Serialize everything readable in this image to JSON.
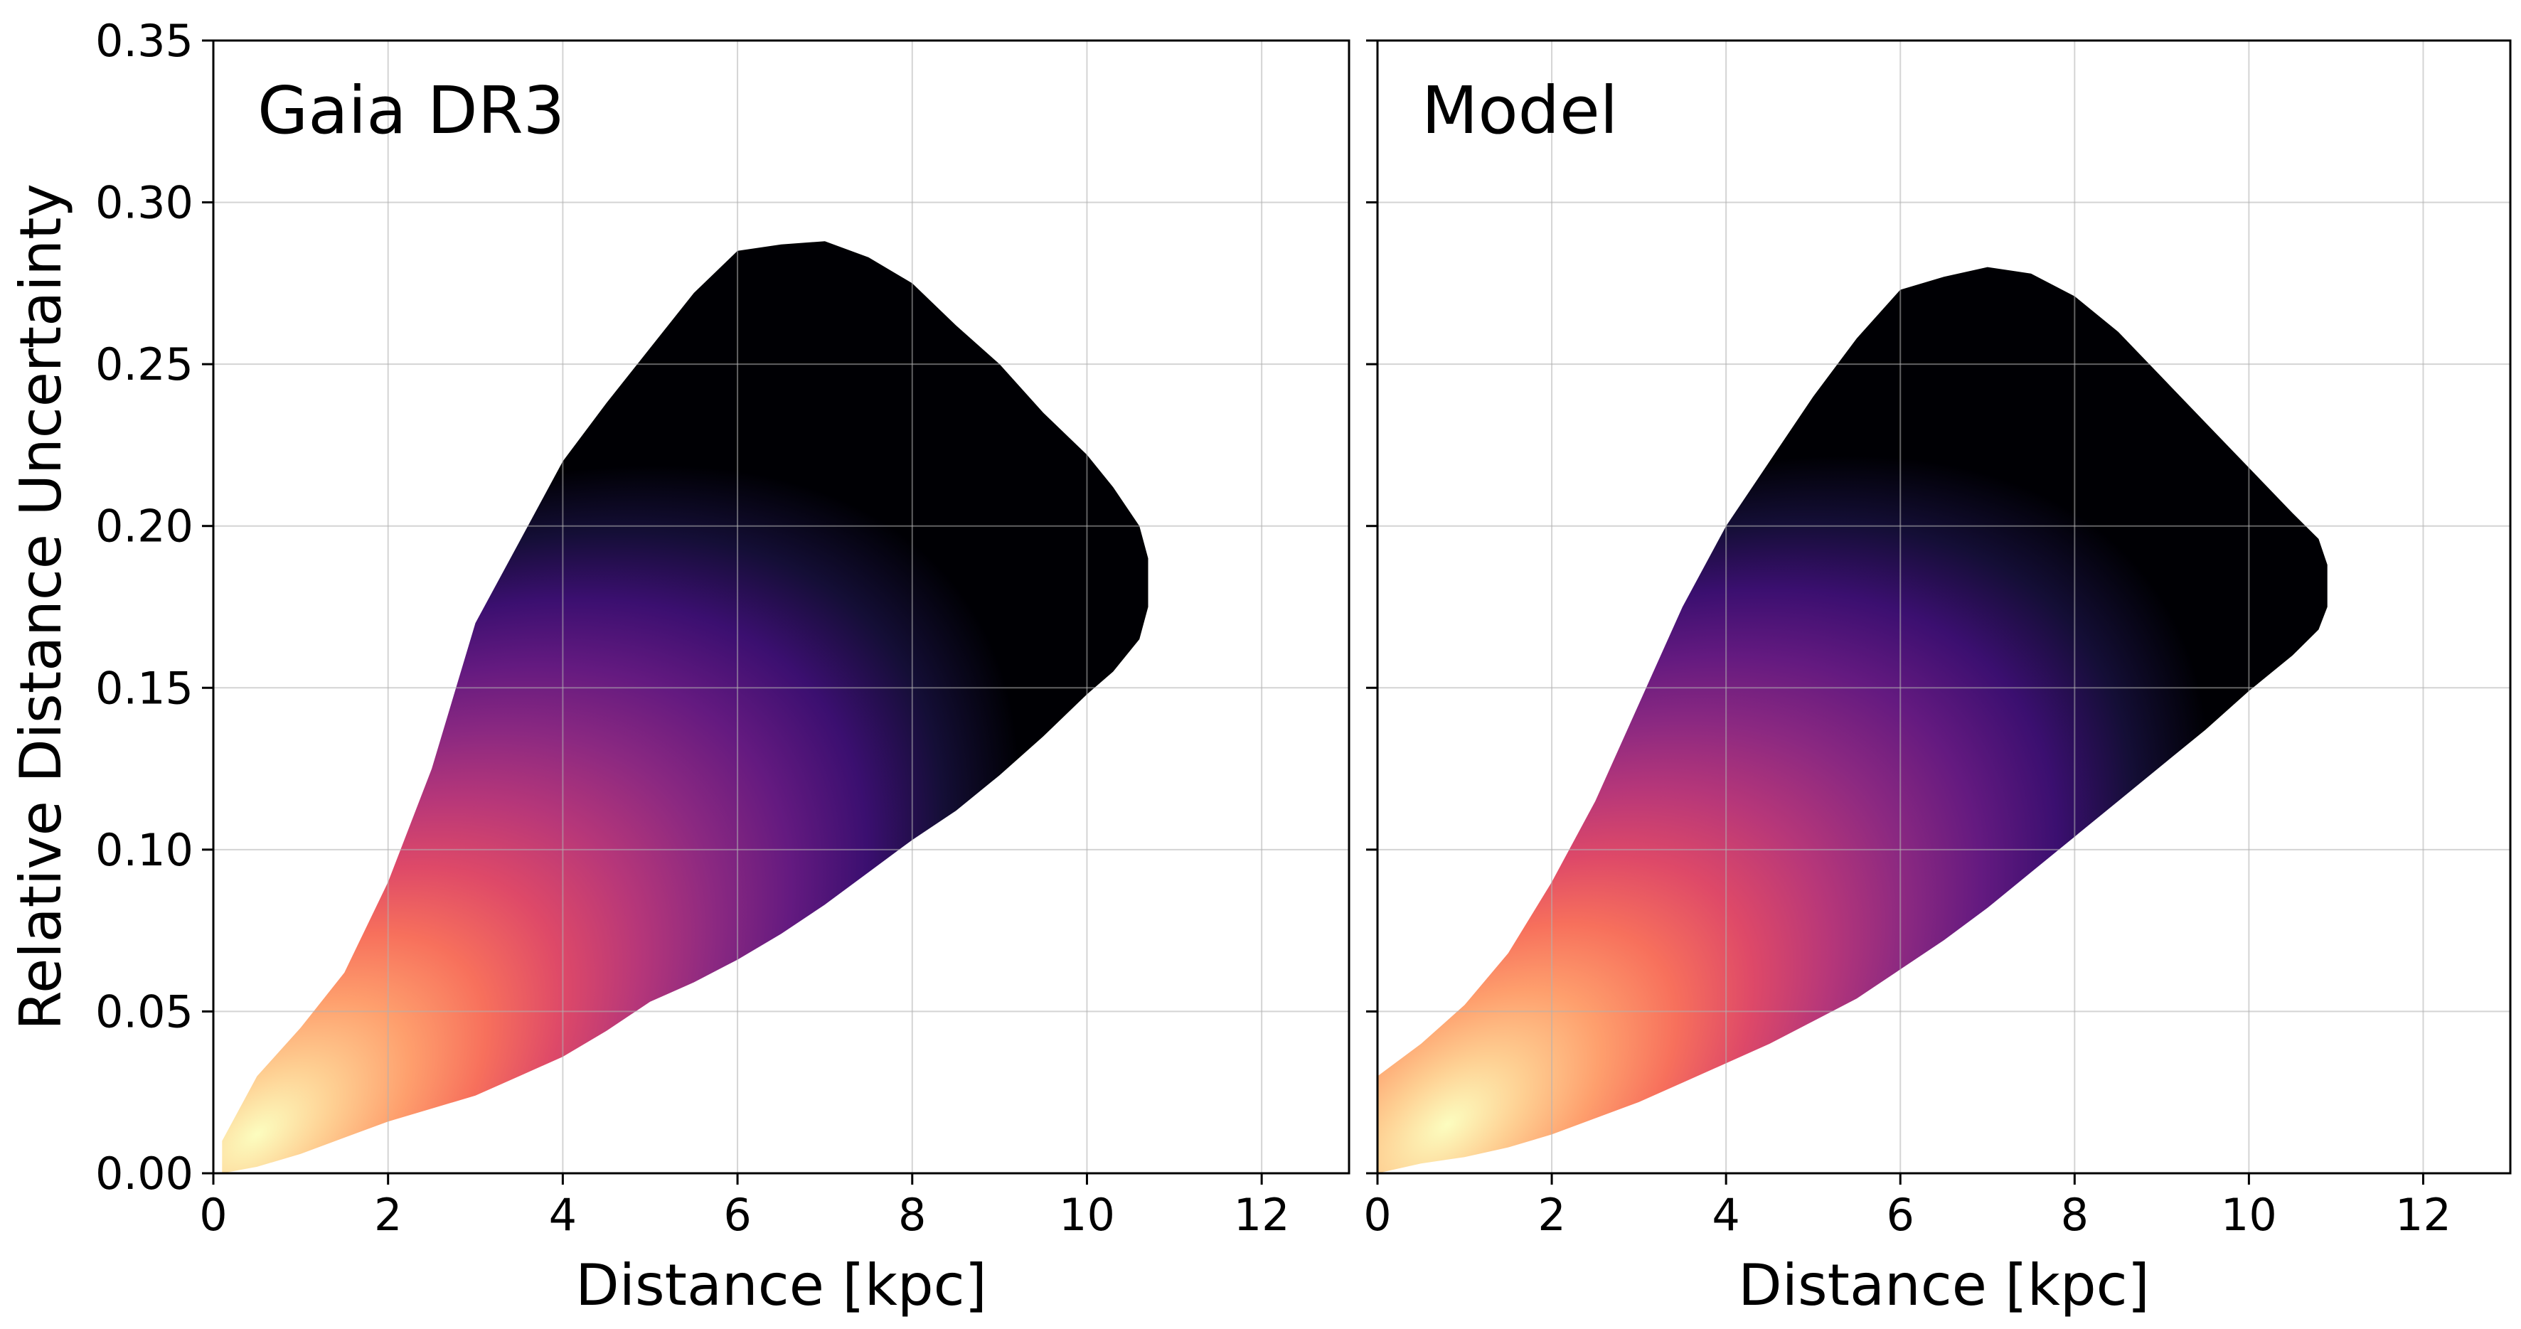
{
  "figure": {
    "shared_y_axis": true,
    "colormap": "magma"
  },
  "chart_data": [
    {
      "type": "heatmap",
      "panel_label": "Gaia DR3",
      "xlabel": "Distance [kpc]",
      "ylabel": "Relative Distance Uncertainty",
      "xlim": [
        0,
        13
      ],
      "ylim": [
        0,
        0.35
      ],
      "xticks": [
        0,
        2,
        4,
        6,
        8,
        10,
        12
      ],
      "yticks": [
        "0.00",
        "0.05",
        "0.10",
        "0.15",
        "0.20",
        "0.25",
        "0.30",
        "0.35"
      ],
      "grid": true,
      "colormap": "magma",
      "density_peak": {
        "x": 0.5,
        "y": 0.012
      },
      "support_envelope": {
        "x": [
          0.1,
          0.5,
          1.0,
          1.5,
          2.0,
          2.5,
          3.0,
          3.5,
          4.0,
          4.5,
          5.0,
          5.5,
          6.0,
          6.5,
          7.0,
          7.5,
          8.0,
          8.5,
          9.0,
          9.5,
          10.0,
          10.3,
          10.6,
          10.7
        ],
        "y_low": [
          0.0,
          0.002,
          0.006,
          0.011,
          0.016,
          0.02,
          0.024,
          0.03,
          0.036,
          0.044,
          0.053,
          0.059,
          0.066,
          0.074,
          0.083,
          0.093,
          0.103,
          0.112,
          0.123,
          0.135,
          0.148,
          0.155,
          0.165,
          0.175
        ],
        "y_high": [
          0.01,
          0.03,
          0.045,
          0.062,
          0.09,
          0.125,
          0.17,
          0.195,
          0.22,
          0.238,
          0.255,
          0.272,
          0.285,
          0.287,
          0.288,
          0.283,
          0.275,
          0.262,
          0.25,
          0.235,
          0.222,
          0.212,
          0.2,
          0.19
        ]
      }
    },
    {
      "type": "heatmap",
      "panel_label": "Model",
      "xlabel": "Distance [kpc]",
      "ylabel": "",
      "xlim": [
        0,
        13
      ],
      "ylim": [
        0,
        0.35
      ],
      "xticks": [
        0,
        2,
        4,
        6,
        8,
        10,
        12
      ],
      "yticks": [],
      "grid": true,
      "colormap": "magma",
      "density_peak": {
        "x": 0.8,
        "y": 0.015
      },
      "support_envelope": {
        "x": [
          0.0,
          0.5,
          1.0,
          1.5,
          2.0,
          2.5,
          3.0,
          3.5,
          4.0,
          4.5,
          5.0,
          5.5,
          6.0,
          6.5,
          7.0,
          7.5,
          8.0,
          8.5,
          9.0,
          9.5,
          10.0,
          10.5,
          10.8,
          10.9
        ],
        "y_low": [
          0.0,
          0.003,
          0.005,
          0.008,
          0.012,
          0.017,
          0.022,
          0.028,
          0.034,
          0.04,
          0.047,
          0.054,
          0.063,
          0.072,
          0.082,
          0.093,
          0.104,
          0.115,
          0.126,
          0.137,
          0.149,
          0.16,
          0.168,
          0.175
        ],
        "y_high": [
          0.03,
          0.04,
          0.052,
          0.068,
          0.09,
          0.115,
          0.145,
          0.175,
          0.2,
          0.22,
          0.24,
          0.258,
          0.273,
          0.277,
          0.28,
          0.278,
          0.271,
          0.26,
          0.246,
          0.232,
          0.218,
          0.204,
          0.196,
          0.188
        ]
      }
    }
  ]
}
